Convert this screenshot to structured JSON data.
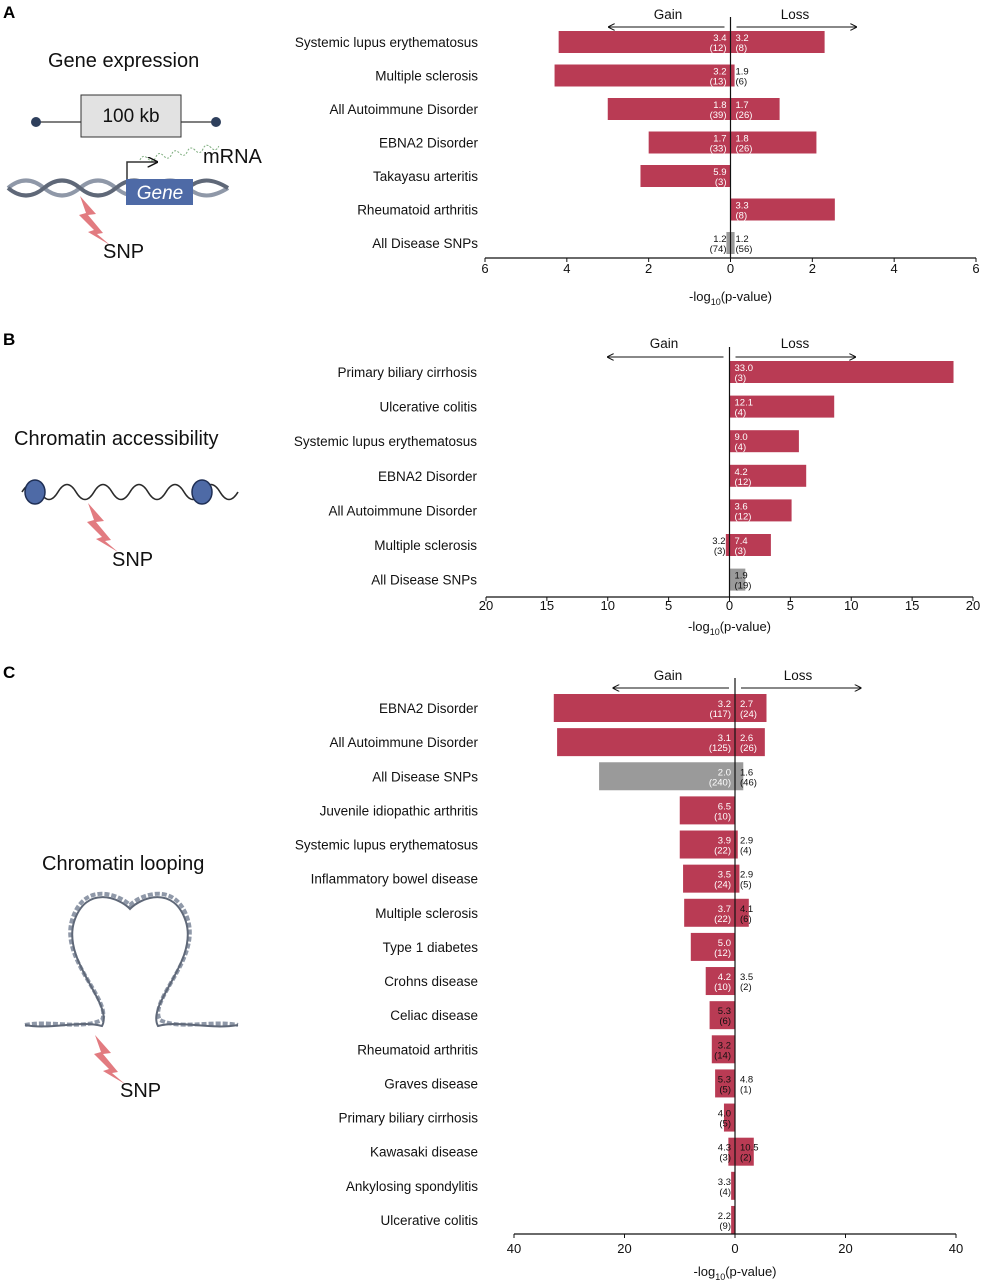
{
  "colors": {
    "bar": "#b93b54",
    "bar_all": "#9a9a9a",
    "dna": "#8f98a8",
    "gene_box": "#4e6aa6",
    "snp": "#e27b80"
  },
  "schematics": {
    "gene_expression": {
      "title": "Gene expression",
      "size_label": "100 kb",
      "mrna_label": "mRNA",
      "gene_label": "Gene",
      "snp_label": "SNP"
    },
    "chromatin_accessibility": {
      "title": "Chromatin accessibility",
      "snp_label": "SNP"
    },
    "chromatin_looping": {
      "title": "Chromatin looping",
      "snp_label": "SNP"
    }
  },
  "chart_data": [
    {
      "panel": "A",
      "type": "bar",
      "orientation": "horizontal-diverging",
      "direction_labels": {
        "left": "Gain",
        "right": "Loss"
      },
      "xlabel_main": "-log",
      "xlabel_sub": "10",
      "xlabel_tail": "(p-value)",
      "xlim": [
        -6,
        6
      ],
      "ticks": [
        -6,
        -4,
        -2,
        0,
        2,
        4,
        6
      ],
      "tick_labels": [
        "6",
        "4",
        "2",
        "0",
        "2",
        "4",
        "6"
      ],
      "categories": [
        "Systemic lupus erythematosus",
        "Multiple sclerosis",
        "All Autoimmune Disorder",
        "EBNA2 Disorder",
        "Takayasu arteritis",
        "Rheumatoid arthritis",
        "All Disease SNPs"
      ],
      "gain": [
        4.2,
        4.3,
        3.0,
        2.0,
        2.2,
        null,
        0.1
      ],
      "loss": [
        2.3,
        0.1,
        1.2,
        2.1,
        null,
        2.55,
        0.1
      ],
      "gain_labels": [
        [
          "3.4",
          "(12)"
        ],
        [
          "3.2",
          "(13)"
        ],
        [
          "1.8",
          "(39)"
        ],
        [
          "1.7",
          "(33)"
        ],
        [
          "5.9",
          "(3)"
        ],
        null,
        [
          "1.2",
          "(74)"
        ]
      ],
      "loss_labels": [
        [
          "3.2",
          "(8)"
        ],
        [
          "1.9",
          "(6)"
        ],
        [
          "1.7",
          "(26)"
        ],
        [
          "1.8",
          "(26)"
        ],
        null,
        [
          "3.3",
          "(8)"
        ],
        [
          "1.2",
          "(56)"
        ]
      ]
    },
    {
      "panel": "B",
      "type": "bar",
      "orientation": "horizontal-diverging",
      "direction_labels": {
        "left": "Gain",
        "right": "Loss"
      },
      "xlabel_main": "-log",
      "xlabel_sub": "10",
      "xlabel_tail": "(p-value)",
      "xlim": [
        -20,
        20
      ],
      "ticks": [
        -20,
        -15,
        -10,
        -5,
        0,
        5,
        10,
        15,
        20
      ],
      "tick_labels": [
        "20",
        "15",
        "10",
        "5",
        "0",
        "5",
        "10",
        "15",
        "20"
      ],
      "categories": [
        "Primary biliary cirrhosis",
        "Ulcerative colitis",
        "Systemic lupus erythematosus",
        "EBNA2 Disorder",
        "All Autoimmune Disorder",
        "Multiple sclerosis",
        "All Disease SNPs"
      ],
      "gain": [
        null,
        null,
        null,
        null,
        null,
        0.3,
        null
      ],
      "loss": [
        18.4,
        8.6,
        5.7,
        6.3,
        5.1,
        3.4,
        1.3
      ],
      "gain_labels": [
        null,
        null,
        null,
        null,
        null,
        [
          "3.2",
          "(3)"
        ],
        null
      ],
      "loss_labels": [
        [
          "33.0",
          "(3)"
        ],
        [
          "12.1",
          "(4)"
        ],
        [
          "9.0",
          "(4)"
        ],
        [
          "4.2",
          "(12)"
        ],
        [
          "3.6",
          "(12)"
        ],
        [
          "7.4",
          "(3)"
        ],
        [
          "1.9",
          "(19)"
        ]
      ]
    },
    {
      "panel": "C",
      "type": "bar",
      "orientation": "horizontal-diverging",
      "direction_labels": {
        "left": "Gain",
        "right": "Loss"
      },
      "xlabel_main": "-log",
      "xlabel_sub": "10",
      "xlabel_tail": "(p-value)",
      "xlim": [
        -40,
        40
      ],
      "ticks": [
        -40,
        -20,
        0,
        20,
        40
      ],
      "tick_labels": [
        "40",
        "20",
        "0",
        "20",
        "40"
      ],
      "categories": [
        "EBNA2 Disorder",
        "All Autoimmune Disorder",
        "All Disease SNPs",
        "Juvenile idiopathic arthritis",
        "Systemic lupus erythematosus",
        "Inflammatory bowel disease",
        "Multiple sclerosis",
        "Type 1 diabetes",
        "Crohns disease",
        "Celiac disease",
        "Rheumatoid arthritis",
        "Graves disease",
        "Primary biliary cirrhosis",
        "Kawasaki disease",
        "Ankylosing spondylitis",
        "Ulcerative colitis"
      ],
      "gain": [
        32.8,
        32.2,
        24.6,
        10.0,
        10.0,
        9.4,
        9.2,
        8.0,
        5.3,
        4.6,
        4.2,
        3.6,
        2.0,
        1.2,
        0.7,
        0.7
      ],
      "loss": [
        5.7,
        5.4,
        1.5,
        null,
        0.5,
        0.8,
        2.5,
        null,
        null,
        null,
        null,
        null,
        null,
        3.4,
        null,
        null
      ],
      "gain_labels": [
        [
          "3.2",
          "(117)"
        ],
        [
          "3.1",
          "(125)"
        ],
        [
          "2.0",
          "(240)"
        ],
        [
          "6.5",
          "(10)"
        ],
        [
          "3.9",
          "(22)"
        ],
        [
          "3.5",
          "(24)"
        ],
        [
          "3.7",
          "(22)"
        ],
        [
          "5.0",
          "(12)"
        ],
        [
          "4.2",
          "(10)"
        ],
        [
          "5.3",
          "(6)"
        ],
        [
          "3.2",
          "(14)"
        ],
        [
          "5.3",
          "(5)"
        ],
        [
          "4.0",
          "(5)"
        ],
        [
          "4.3",
          "(3)"
        ],
        [
          "3.3",
          "(4)"
        ],
        [
          "2.2",
          "(9)"
        ]
      ],
      "loss_labels": [
        [
          "2.7",
          "(24)"
        ],
        [
          "2.6",
          "(26)"
        ],
        [
          "1.6",
          "(46)"
        ],
        null,
        [
          "2.9",
          "(4)"
        ],
        [
          "2.9",
          "(5)"
        ],
        [
          "4.1",
          "(6)"
        ],
        null,
        [
          "3.5",
          "(2)"
        ],
        null,
        null,
        [
          "4.8",
          "(1)"
        ],
        null,
        [
          "10.5",
          "(2)"
        ],
        null,
        null
      ]
    }
  ]
}
